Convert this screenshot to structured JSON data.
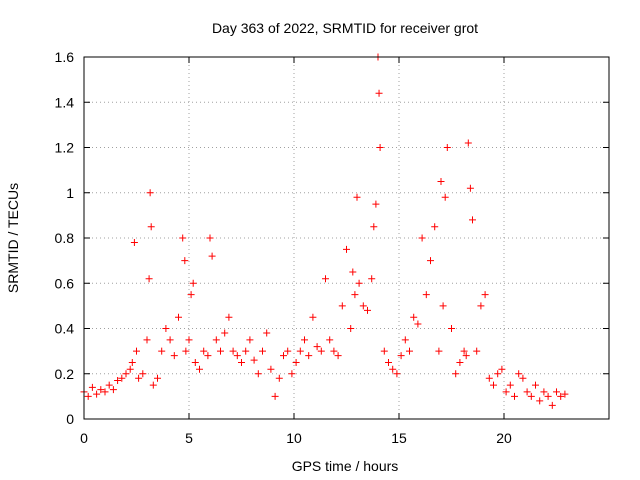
{
  "chart_data": {
    "type": "scatter",
    "title": "Day 363 of 2022, SRMTID for receiver grot",
    "xlabel": "GPS time / hours",
    "ylabel": "SRMTID / TECUs",
    "xlim": [
      0,
      25
    ],
    "ylim": [
      0,
      1.6
    ],
    "x_ticks": [
      0,
      5,
      10,
      15,
      20
    ],
    "x_tick_labels": [
      "0",
      "5",
      "10",
      "15",
      "20"
    ],
    "y_ticks": [
      0,
      0.2,
      0.4,
      0.6,
      0.8,
      1.0,
      1.2,
      1.4,
      1.6
    ],
    "y_tick_labels": [
      "0",
      "0.2",
      "0.4",
      "0.6",
      "0.8",
      "1",
      "1.2",
      "1.4",
      "1.6"
    ],
    "grid": true,
    "marker": "+",
    "marker_color": "#ff0000",
    "series": [
      {
        "name": "SRMTID",
        "x": [
          0.0,
          0.2,
          0.4,
          0.6,
          0.8,
          1.0,
          1.2,
          1.4,
          1.6,
          1.8,
          2.0,
          2.2,
          2.3,
          2.4,
          2.5,
          2.6,
          2.8,
          3.0,
          3.1,
          3.15,
          3.2,
          3.3,
          3.5,
          3.7,
          3.9,
          4.1,
          4.3,
          4.5,
          4.7,
          4.8,
          4.85,
          5.0,
          5.1,
          5.2,
          5.3,
          5.5,
          5.7,
          5.9,
          6.0,
          6.1,
          6.3,
          6.5,
          6.7,
          6.9,
          7.1,
          7.3,
          7.5,
          7.7,
          7.9,
          8.1,
          8.3,
          8.5,
          8.7,
          8.9,
          9.1,
          9.3,
          9.5,
          9.7,
          9.9,
          10.1,
          10.3,
          10.5,
          10.7,
          10.9,
          11.1,
          11.3,
          11.5,
          11.7,
          11.9,
          12.1,
          12.3,
          12.5,
          12.7,
          12.8,
          12.9,
          13.0,
          13.1,
          13.3,
          13.5,
          13.7,
          13.8,
          13.9,
          14.0,
          14.05,
          14.1,
          14.3,
          14.5,
          14.7,
          14.9,
          15.1,
          15.3,
          15.5,
          15.7,
          15.9,
          16.1,
          16.3,
          16.5,
          16.7,
          16.9,
          17.0,
          17.1,
          17.2,
          17.3,
          17.5,
          17.7,
          17.9,
          18.1,
          18.2,
          18.3,
          18.4,
          18.5,
          18.7,
          18.9,
          19.1,
          19.3,
          19.5,
          19.7,
          19.9,
          20.1,
          20.3,
          20.5,
          20.7,
          20.9,
          21.1,
          21.3,
          21.5,
          21.7,
          21.9,
          22.1,
          22.3,
          22.5,
          22.7,
          22.9
        ],
        "y": [
          0.12,
          0.1,
          0.14,
          0.11,
          0.13,
          0.12,
          0.15,
          0.13,
          0.17,
          0.18,
          0.2,
          0.22,
          0.25,
          0.78,
          0.3,
          0.18,
          0.2,
          0.35,
          0.62,
          1.0,
          0.85,
          0.15,
          0.18,
          0.3,
          0.4,
          0.35,
          0.28,
          0.45,
          0.8,
          0.7,
          0.3,
          0.35,
          0.55,
          0.6,
          0.25,
          0.22,
          0.3,
          0.28,
          0.8,
          0.72,
          0.35,
          0.3,
          0.38,
          0.45,
          0.3,
          0.28,
          0.25,
          0.3,
          0.35,
          0.26,
          0.2,
          0.3,
          0.38,
          0.22,
          0.1,
          0.18,
          0.28,
          0.3,
          0.2,
          0.25,
          0.3,
          0.35,
          0.28,
          0.45,
          0.32,
          0.3,
          0.62,
          0.35,
          0.3,
          0.28,
          0.5,
          0.75,
          0.4,
          0.65,
          0.55,
          0.98,
          0.6,
          0.5,
          0.48,
          0.62,
          0.85,
          0.95,
          1.6,
          1.44,
          1.2,
          0.3,
          0.25,
          0.22,
          0.2,
          0.28,
          0.35,
          0.3,
          0.45,
          0.42,
          0.8,
          0.55,
          0.7,
          0.85,
          0.3,
          1.05,
          0.5,
          0.98,
          1.2,
          0.4,
          0.2,
          0.25,
          0.3,
          0.28,
          1.22,
          1.02,
          0.88,
          0.3,
          0.5,
          0.55,
          0.18,
          0.15,
          0.2,
          0.22,
          0.12,
          0.15,
          0.1,
          0.2,
          0.18,
          0.12,
          0.1,
          0.15,
          0.08,
          0.12,
          0.1,
          0.06,
          0.12,
          0.1,
          0.11
        ]
      }
    ]
  }
}
